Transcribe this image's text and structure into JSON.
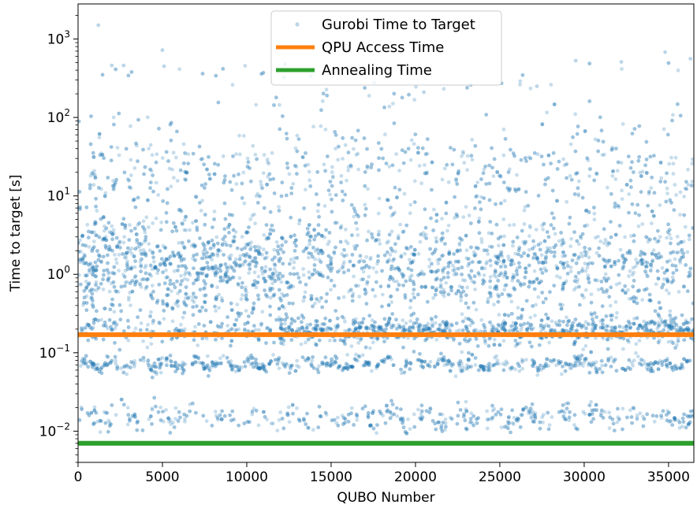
{
  "chart_data": {
    "type": "scatter",
    "title": "",
    "xlabel": "QUBO Number",
    "ylabel": "Time to target [s]",
    "xlim": [
      0,
      36500
    ],
    "ylim": [
      0.004,
      2800
    ],
    "yscale": "log",
    "grid": false,
    "legend_position": "top-center",
    "x_ticks": [
      0,
      5000,
      10000,
      15000,
      20000,
      25000,
      30000,
      35000
    ],
    "x_tick_labels": [
      "0",
      "5000",
      "10000",
      "15000",
      "20000",
      "25000",
      "30000",
      "35000"
    ],
    "y_ticks": [
      {
        "value": 0.01,
        "base": "10",
        "exp": "−2"
      },
      {
        "value": 0.1,
        "base": "10",
        "exp": "−1"
      },
      {
        "value": 1,
        "base": "10",
        "exp": "0"
      },
      {
        "value": 10,
        "base": "10",
        "exp": "1"
      },
      {
        "value": 100,
        "base": "10",
        "exp": "2"
      },
      {
        "value": 1000,
        "base": "10",
        "exp": "3"
      }
    ],
    "series": [
      {
        "name": "Gurobi Time to Target",
        "kind": "scatter",
        "color": "#1f77b4",
        "approx_point_count": 9000,
        "bands": [
          {
            "center": 1.3,
            "log_spread": 0.22
          },
          {
            "center": 0.19,
            "log_spread": 0.06
          },
          {
            "center": 0.072,
            "log_spread": 0.04
          },
          {
            "center": 0.015,
            "log_spread": 0.05
          },
          {
            "center": 18,
            "log_spread": 0.18
          }
        ],
        "notable_points": [
          [
            1200,
            1500
          ],
          [
            5000,
            720
          ],
          [
            5100,
            450
          ],
          [
            2000,
            460
          ],
          [
            2700,
            460
          ],
          [
            29500,
            530
          ],
          [
            34800,
            680
          ],
          [
            36300,
            560
          ],
          [
            32200,
            510
          ],
          [
            20500,
            210
          ],
          [
            27200,
            250
          ]
        ]
      },
      {
        "name": "QPU Access Time",
        "kind": "line",
        "color": "#ff7f0e",
        "value": 0.17
      },
      {
        "name": "Annealing Time",
        "kind": "line",
        "color": "#2ca02c",
        "value": 0.007
      }
    ]
  }
}
